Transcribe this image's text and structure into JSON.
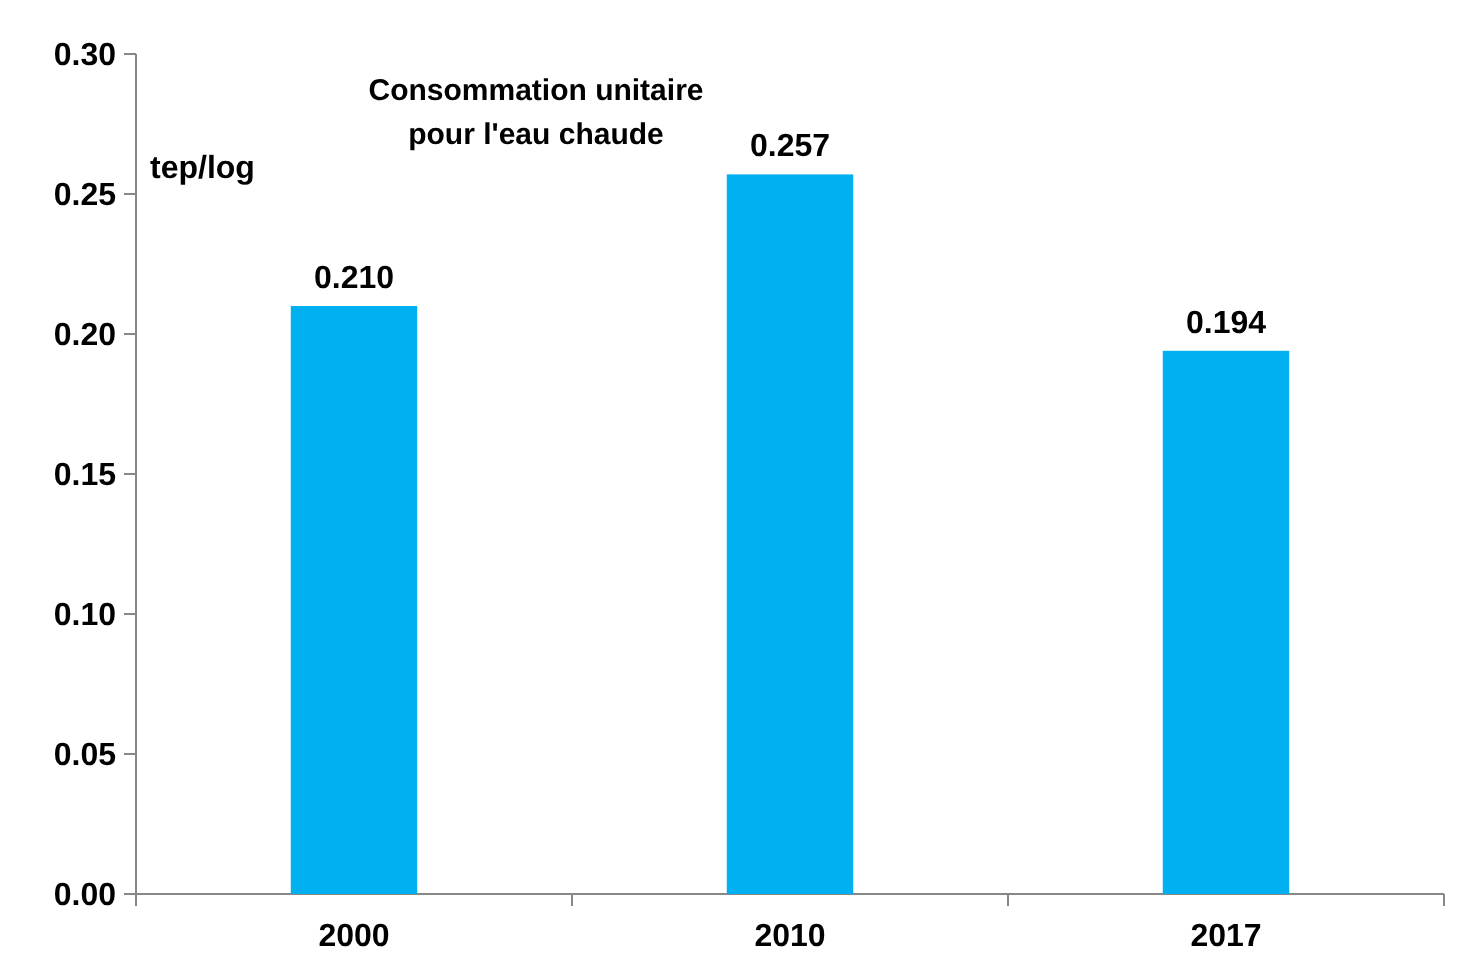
{
  "chart_data": {
    "type": "bar",
    "title": "Consommation unitaire\npour l'eau chaude",
    "ylabel": "tep/log",
    "categories": [
      "2000",
      "2010",
      "2017"
    ],
    "values": [
      0.21,
      0.257,
      0.194
    ],
    "value_labels": [
      "0.210",
      "0.257",
      "0.194"
    ],
    "color": "#00b0f0",
    "ylim": [
      0,
      0.3
    ],
    "yticks": [
      {
        "value": 0,
        "label": "0.00"
      },
      {
        "value": 0.05,
        "label": "0.05"
      },
      {
        "value": 0.1,
        "label": "0.10"
      },
      {
        "value": 0.15,
        "label": "0.15"
      },
      {
        "value": 0.2,
        "label": "0.20"
      },
      {
        "value": 0.25,
        "label": "0.25"
      },
      {
        "value": 0.3,
        "label": "0.30"
      }
    ],
    "grid": false
  }
}
